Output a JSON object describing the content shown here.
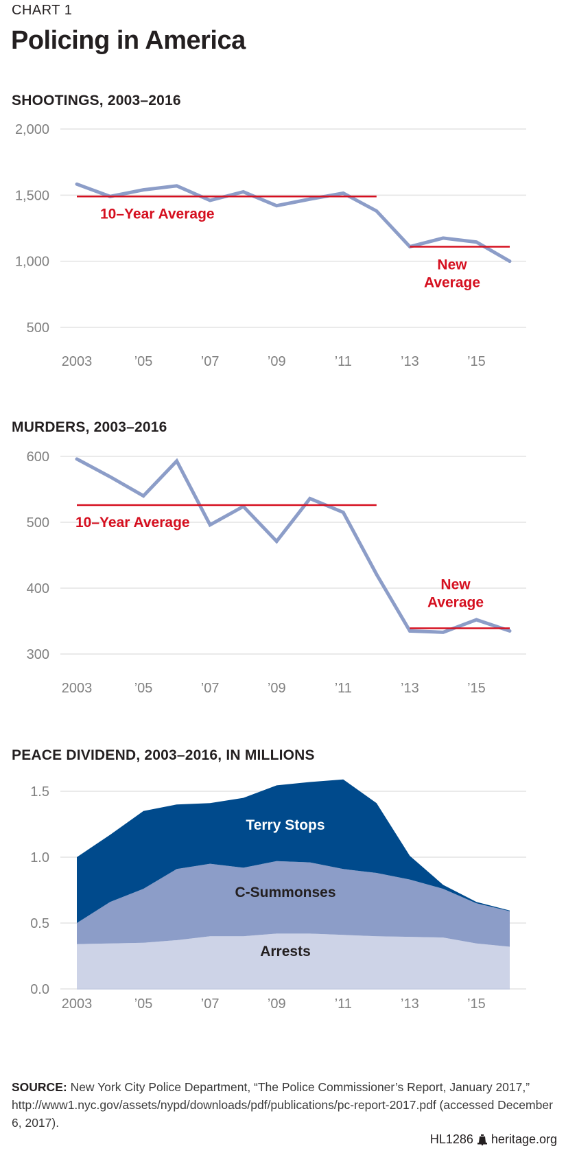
{
  "header": {
    "eyebrow": "CHART 1",
    "title": "Policing in America"
  },
  "colors": {
    "line": "#8c9dc8",
    "average": "#d50f1f",
    "grid": "#e3e3e3",
    "tick": "#808080",
    "terry_stops": "#004a8c",
    "c_summonses": "#8c9dc8",
    "arrests": "#cdd3e7"
  },
  "chart_data": [
    {
      "type": "line",
      "title": "SHOOTINGS, 2003–2016",
      "x": [
        2003,
        2004,
        2005,
        2006,
        2007,
        2008,
        2009,
        2010,
        2011,
        2012,
        2013,
        2014,
        2015,
        2016
      ],
      "series": [
        {
          "name": "Shootings",
          "values": [
            1583,
            1490,
            1540,
            1570,
            1460,
            1525,
            1420,
            1470,
            1515,
            1380,
            1110,
            1175,
            1145,
            1000
          ]
        }
      ],
      "averages": [
        {
          "label": "10–Year Average",
          "value": 1490,
          "from": 2003,
          "to": 2012
        },
        {
          "label_lines": [
            "New",
            "Average"
          ],
          "value": 1110,
          "from": 2013,
          "to": 2016
        }
      ],
      "ylim": [
        500,
        2000
      ],
      "yticks": [
        2000,
        1500,
        1000,
        500
      ],
      "ytick_labels": [
        "2,000",
        "1,500",
        "1,000",
        "500"
      ],
      "xticks": [
        2003,
        2005,
        2007,
        2009,
        2011,
        2013,
        2015
      ],
      "xtick_labels": [
        "2003",
        "’05",
        "’07",
        "’09",
        "’11",
        "’13",
        "’15"
      ],
      "grid": true,
      "xlabel": "",
      "ylabel": ""
    },
    {
      "type": "line",
      "title": "MURDERS, 2003–2016",
      "x": [
        2003,
        2004,
        2005,
        2006,
        2007,
        2008,
        2009,
        2010,
        2011,
        2012,
        2013,
        2014,
        2015,
        2016
      ],
      "series": [
        {
          "name": "Murders",
          "values": [
            596,
            569,
            540,
            593,
            496,
            524,
            471,
            536,
            515,
            421,
            335,
            333,
            352,
            335
          ]
        }
      ],
      "averages": [
        {
          "label": "10–Year Average",
          "value": 526,
          "from": 2003,
          "to": 2012
        },
        {
          "label_lines": [
            "New",
            "Average"
          ],
          "value": 339,
          "from": 2013,
          "to": 2016
        }
      ],
      "ylim": [
        300,
        600
      ],
      "yticks": [
        600,
        500,
        400,
        300
      ],
      "ytick_labels": [
        "600",
        "500",
        "400",
        "300"
      ],
      "xticks": [
        2003,
        2005,
        2007,
        2009,
        2011,
        2013,
        2015
      ],
      "xtick_labels": [
        "2003",
        "’05",
        "’07",
        "’09",
        "’11",
        "’13",
        "’15"
      ],
      "grid": true,
      "xlabel": "",
      "ylabel": ""
    },
    {
      "type": "area",
      "stacked": true,
      "title": "PEACE DIVIDEND, 2003–2016, IN MILLIONS",
      "x": [
        2003,
        2004,
        2005,
        2006,
        2007,
        2008,
        2009,
        2010,
        2011,
        2012,
        2013,
        2014,
        2015,
        2016
      ],
      "series": [
        {
          "name": "Arrests",
          "values": [
            0.34,
            0.345,
            0.35,
            0.37,
            0.4,
            0.4,
            0.42,
            0.42,
            0.41,
            0.4,
            0.395,
            0.39,
            0.345,
            0.32
          ]
        },
        {
          "name": "C-Summonses",
          "values": [
            0.16,
            0.315,
            0.41,
            0.54,
            0.55,
            0.52,
            0.55,
            0.54,
            0.5,
            0.48,
            0.435,
            0.37,
            0.305,
            0.27
          ]
        },
        {
          "name": "Terry Stops",
          "values": [
            0.5,
            0.51,
            0.59,
            0.49,
            0.46,
            0.53,
            0.575,
            0.61,
            0.68,
            0.53,
            0.18,
            0.03,
            0.01,
            0.005
          ]
        }
      ],
      "ylim": [
        0,
        1.6
      ],
      "yticks": [
        1.5,
        1.0,
        0.5,
        0.0
      ],
      "ytick_labels": [
        "1.5",
        "1.0",
        "0.5",
        "0.0"
      ],
      "xticks": [
        2003,
        2005,
        2007,
        2009,
        2011,
        2013,
        2015
      ],
      "xtick_labels": [
        "2003",
        "’05",
        "’07",
        "’09",
        "’11",
        "’13",
        "’15"
      ],
      "grid": true,
      "xlabel": "",
      "ylabel": ""
    }
  ],
  "source": {
    "label": "SOURCE:",
    "text": " New York City Police Department, “The Police Commissioner’s Report, January 2017,” http://www1.nyc.gov/assets/nypd/downloads/pdf/publications/pc-report-2017.pdf (accessed December 6, 2017)."
  },
  "footer": {
    "code": "HL1286",
    "site": "heritage.org"
  }
}
